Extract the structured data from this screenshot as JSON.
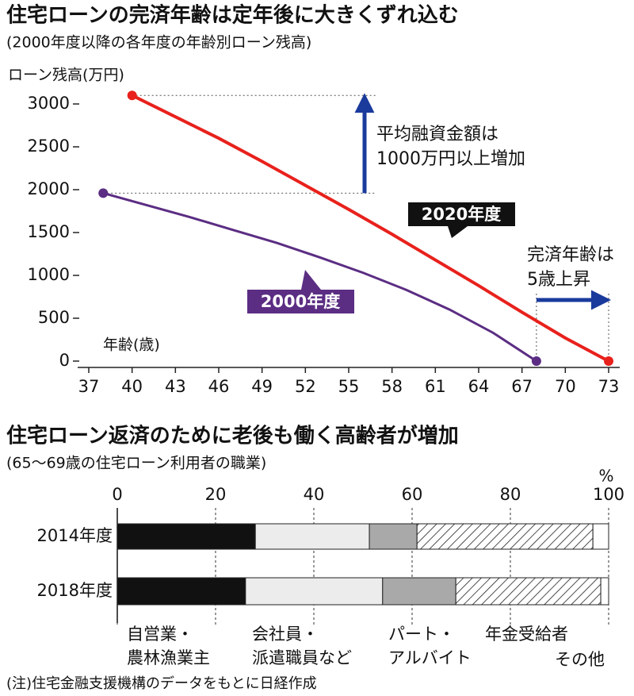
{
  "chart_data": [
    {
      "type": "line",
      "title": "住宅ローンの完済年齢は定年後に大きくずれ込む",
      "subtitle": "(2000年度以降の各年度の年齢別ローン残高)",
      "y_label": "ローン残高(万円)",
      "x_label": "年齢(歳)",
      "xlim": [
        37,
        73
      ],
      "xticks": [
        37,
        40,
        43,
        46,
        49,
        52,
        55,
        58,
        61,
        64,
        67,
        70,
        73
      ],
      "ylim": [
        0,
        3000
      ],
      "yticks": [
        0,
        500,
        1000,
        1500,
        2000,
        2500,
        3000
      ],
      "series": [
        {
          "name": "2020年度",
          "color": "#e8211c",
          "box_color": "#111111",
          "x": [
            40,
            43,
            46,
            49,
            52,
            55,
            58,
            61,
            64,
            67,
            70,
            73
          ],
          "values": [
            3100,
            2850,
            2600,
            2330,
            2050,
            1770,
            1480,
            1180,
            880,
            570,
            270,
            0
          ]
        },
        {
          "name": "2000年度",
          "color": "#5b2d83",
          "box_color": "#5b2d83",
          "x": [
            38,
            41,
            44,
            47,
            50,
            53,
            56,
            59,
            62,
            65,
            68
          ],
          "values": [
            1960,
            1820,
            1680,
            1530,
            1380,
            1210,
            1030,
            830,
            600,
            330,
            0
          ]
        }
      ],
      "annotations": [
        [
          "平均融資金額は",
          "1000万円以上増加"
        ],
        [
          "完済年齢は",
          "5歳上昇"
        ]
      ],
      "arrow_color": "#1a3a9c"
    },
    {
      "type": "stacked_bar",
      "title": "住宅ローン返済のために老後も働く高齢者が増加",
      "subtitle": "(65～69歳の住宅ローン利用者の職業)",
      "unit": "%",
      "categories": [
        "2014年度",
        "2018年度"
      ],
      "xlim": [
        0,
        100
      ],
      "xticks": [
        0,
        20,
        40,
        60,
        80,
        100
      ],
      "grid": true,
      "series": [
        {
          "name": [
            "自営業・",
            "農林漁業主"
          ],
          "color": "#111111",
          "values": [
            28.1,
            26.1
          ]
        },
        {
          "name": [
            "会社員・",
            "派遣職員など"
          ],
          "color": "#ececec",
          "values": [
            23.2,
            27.9
          ]
        },
        {
          "name": [
            "パート・",
            "アルバイト"
          ],
          "color": "#a9a9a9",
          "values": [
            9.7,
            14.9
          ]
        },
        {
          "name": "年金受給者",
          "color": "#ffffff",
          "pattern": "hatch",
          "values": [
            35.8,
            29.5
          ]
        },
        {
          "name": "その他",
          "color": "#ffffff",
          "values": [
            3.2,
            1.6
          ]
        }
      ]
    }
  ],
  "note": "(注)住宅金融支援機構のデータをもとに日経作成"
}
